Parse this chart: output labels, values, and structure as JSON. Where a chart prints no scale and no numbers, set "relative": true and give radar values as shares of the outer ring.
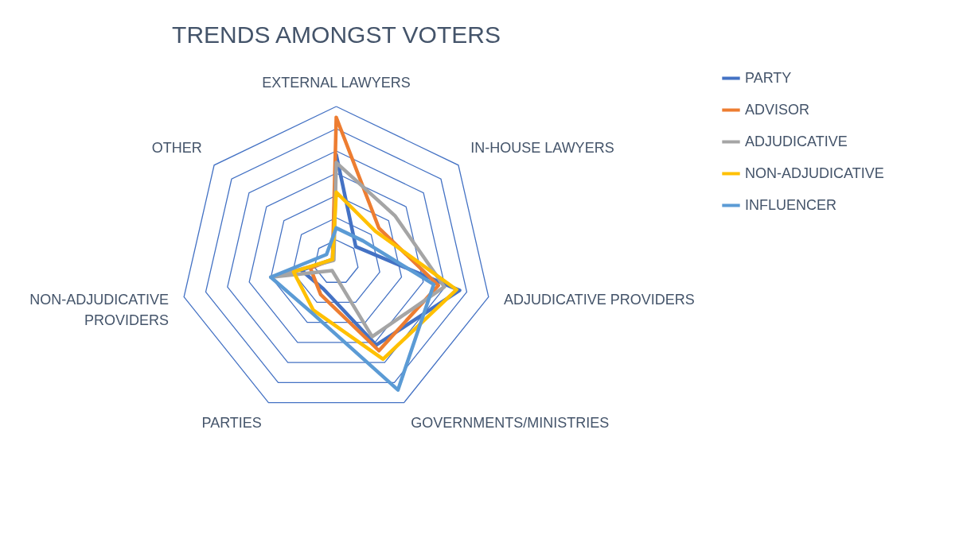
{
  "chart_data": {
    "type": "radar",
    "title": "TRENDS AMONGST VOTERS",
    "relative": true,
    "grid": true,
    "legend": "right",
    "categories": [
      "EXTERNAL LAWYERS",
      "IN-HOUSE LAWYERS",
      "ADJUDICATIVE PROVIDERS",
      "GOVERNMENTS/MINISTRIES",
      "PARTIES",
      "NON-ADJUDICATIVE PROVIDERS",
      "OTHER"
    ],
    "series": [
      {
        "name": "PARTY",
        "color": "#4472c4",
        "values": [
          0.69,
          0.16,
          0.81,
          0.59,
          0.19,
          0.23,
          0.03
        ]
      },
      {
        "name": "ADVISOR",
        "color": "#ed7d31",
        "values": [
          0.93,
          0.35,
          0.67,
          0.63,
          0.23,
          0.17,
          0.03
        ]
      },
      {
        "name": "ADJUDICATIVE",
        "color": "#a5a5a5",
        "values": [
          0.64,
          0.48,
          0.71,
          0.53,
          0.06,
          0.43,
          0.02
        ]
      },
      {
        "name": "NON-ADJUDICATIVE",
        "color": "#ffc000",
        "values": [
          0.45,
          0.32,
          0.79,
          0.69,
          0.34,
          0.28,
          0.03
        ]
      },
      {
        "name": "INFLUENCER",
        "color": "#5b9bd5",
        "values": [
          0.22,
          0.22,
          0.64,
          0.91,
          0.36,
          0.43,
          0.08
        ]
      }
    ]
  }
}
